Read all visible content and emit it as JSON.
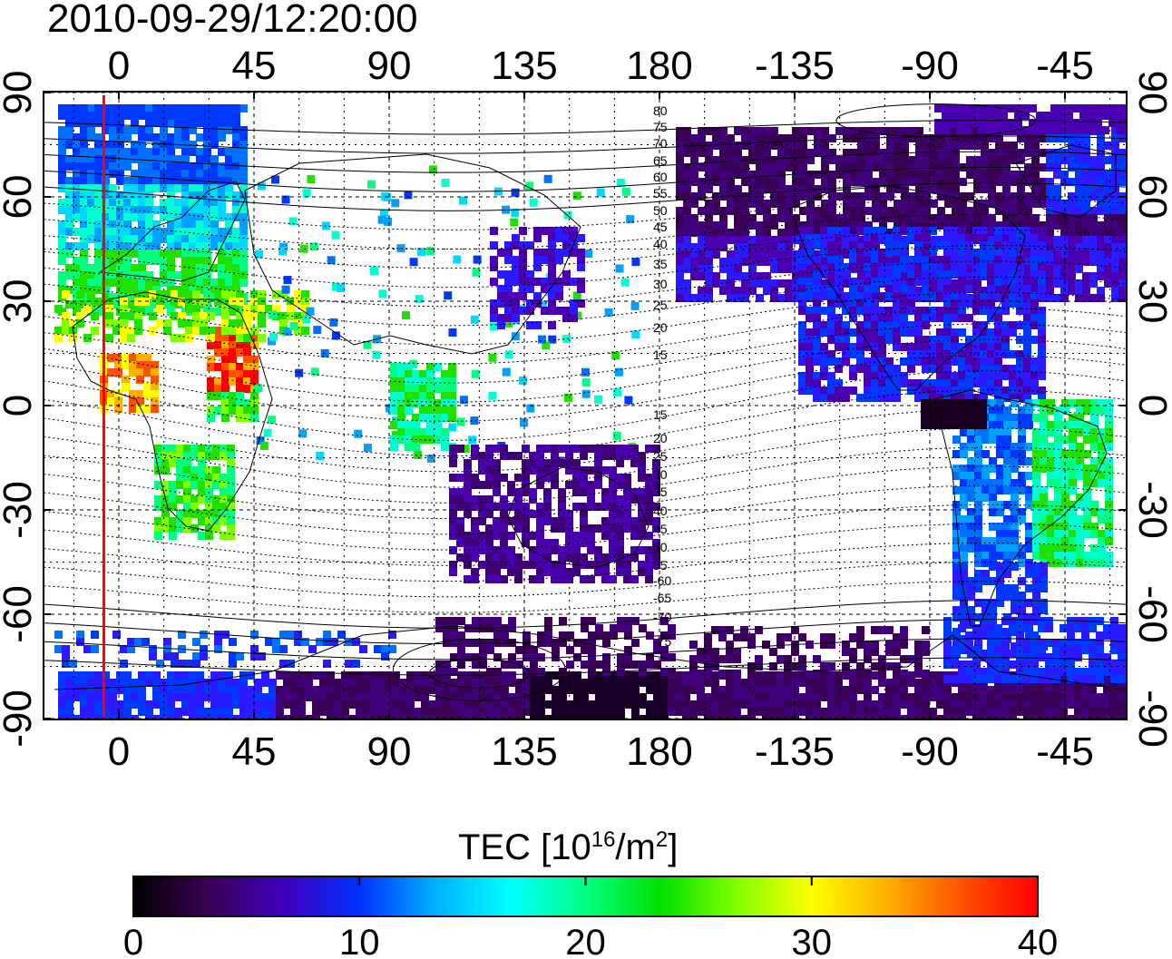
{
  "map": {
    "title": "2010-09-29/12:20:00",
    "top_lon_ticks": [
      "0",
      "45",
      "90",
      "135",
      "180",
      "-135",
      "-90",
      "-45"
    ],
    "bottom_lon_ticks": [
      "0",
      "45",
      "90",
      "135",
      "180",
      "-135",
      "-90",
      "-45"
    ],
    "left_lat_ticks": [
      "90",
      "60",
      "30",
      "0",
      "-30",
      "-60",
      "-90"
    ],
    "right_lat_ticks": [
      "90",
      "60",
      "30",
      "0",
      "-30",
      "-60",
      "-90"
    ],
    "contour_labels": [
      "80",
      "75",
      "70",
      "65",
      "60",
      "55",
      "50",
      "45",
      "40",
      "35",
      "30",
      "25",
      "20",
      "15",
      "15",
      "20",
      "25",
      "30",
      "35",
      "40",
      "45",
      "50",
      "55",
      "-60",
      "-65",
      "-70",
      "-75"
    ],
    "terminator_longitude": -5,
    "colors": {
      "terminator": "#ff0000",
      "frame": "#000000"
    }
  },
  "colorbar": {
    "label_prefix": "TEC  [10",
    "label_exp1": "16",
    "label_mid": "/m",
    "label_exp2": "2",
    "label_suffix": "]",
    "ticks": [
      "0",
      "10",
      "20",
      "30",
      "40"
    ],
    "range": [
      0,
      40
    ],
    "stops": [
      "#000000",
      "#3a0055",
      "#4000c0",
      "#0030ff",
      "#00b0ff",
      "#00ffff",
      "#00ff80",
      "#00e000",
      "#80ff00",
      "#ffff00",
      "#ffb000",
      "#ff5000",
      "#ff0000"
    ]
  }
}
